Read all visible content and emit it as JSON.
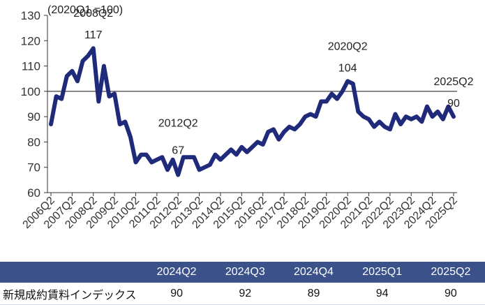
{
  "chart_data": {
    "type": "line",
    "unit_note": "(2020Q1 =100)",
    "ylim": [
      60,
      130
    ],
    "yticks": [
      60,
      70,
      80,
      90,
      100,
      110,
      120,
      130
    ],
    "reference_line": 100,
    "x_tick_labels": [
      "2006Q2",
      "2007Q2",
      "2008Q2",
      "2009Q2",
      "2010Q2",
      "2011Q2",
      "2012Q2",
      "2013Q2",
      "2014Q2",
      "2015Q2",
      "2016Q2",
      "2017Q2",
      "2018Q2",
      "2019Q2",
      "2020Q2",
      "2021Q2",
      "2022Q2",
      "2023Q2",
      "2024Q2",
      "2025Q2"
    ],
    "x_start": "2006Q2",
    "series_color": "#1f2a7a",
    "values": [
      87,
      98,
      97,
      106,
      108,
      104,
      112,
      114,
      117,
      96,
      110,
      98,
      99,
      87,
      88,
      82,
      72,
      75,
      75,
      72,
      73,
      74,
      69,
      73,
      67,
      74,
      74,
      74,
      69,
      70,
      71,
      75,
      73,
      75,
      77,
      75,
      78,
      76,
      78,
      80,
      79,
      84,
      85,
      81,
      84,
      86,
      85,
      87,
      90,
      91,
      90,
      96,
      96,
      99,
      97,
      100,
      104,
      103,
      92,
      90,
      89,
      86,
      88,
      86,
      85,
      91,
      87,
      90,
      89,
      90,
      88,
      94,
      90,
      92,
      89,
      94,
      90
    ],
    "annotations": [
      {
        "period": "2008Q2",
        "label": "2008Q2",
        "value_label": "117"
      },
      {
        "period": "2012Q2",
        "label": "2012Q2",
        "value_label": "67"
      },
      {
        "period": "2020Q2",
        "label": "2020Q2",
        "value_label": "104"
      },
      {
        "period": "2025Q2",
        "label": "2025Q2",
        "value_label": "90"
      }
    ]
  },
  "table": {
    "headers": [
      "",
      "2024Q2",
      "2024Q3",
      "2024Q4",
      "2025Q1",
      "2025Q2"
    ],
    "rows": [
      {
        "label": "新規成約賃料インデックス",
        "values": [
          "90",
          "92",
          "89",
          "94",
          "90"
        ]
      }
    ]
  }
}
